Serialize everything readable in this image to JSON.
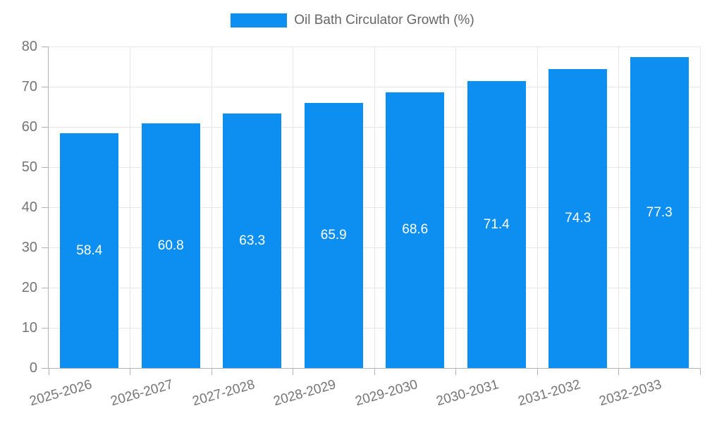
{
  "legend": {
    "label": "Oil Bath Circulator Growth (%)"
  },
  "colors": {
    "bar": "#0d8ff2",
    "grid": "#e6e6e6",
    "axis": "#b3b3b3",
    "tick_label": "#757575",
    "legend_text": "#666666",
    "bar_label": "#ffffff"
  },
  "chart_data": {
    "type": "bar",
    "title": "Oil Bath Circulator Growth (%)",
    "categories": [
      "2025-2026",
      "2026-2027",
      "2027-2028",
      "2028-2029",
      "2029-2030",
      "2030-2031",
      "2031-2032",
      "2032-2033"
    ],
    "values": [
      58.4,
      60.8,
      63.3,
      65.9,
      68.6,
      71.4,
      74.3,
      77.3
    ],
    "value_labels": [
      "58.4",
      "60.8",
      "63.3",
      "65.9",
      "68.6",
      "71.4",
      "74.3",
      "77.3"
    ],
    "xlabel": "",
    "ylabel": "",
    "ylim": [
      0,
      80
    ],
    "ytick_step": 10,
    "ytick_labels": [
      "0",
      "10",
      "20",
      "30",
      "40",
      "50",
      "60",
      "70",
      "80"
    ],
    "grid": true,
    "legend_position": "top",
    "value_label_placement": "inside-center-white",
    "xtick_rotation_deg": -16
  }
}
